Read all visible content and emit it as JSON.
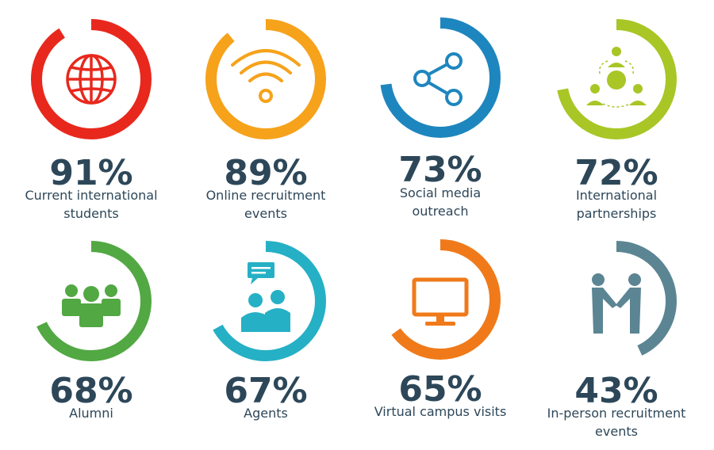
{
  "chart_data": {
    "type": "donut",
    "items": [
      {
        "value": 91,
        "label": "91%",
        "caption_line1": "Current international",
        "caption_line2": "students",
        "color": "#e8281d",
        "icon": "globe-icon"
      },
      {
        "value": 89,
        "label": "89%",
        "caption_line1": "Online recruitment",
        "caption_line2": "events",
        "color": "#f6a21b",
        "icon": "wifi-icon"
      },
      {
        "value": 73,
        "label": "73%",
        "caption_line1": "Social media",
        "caption_line2": "outreach",
        "color": "#1e86be",
        "icon": "share-icon"
      },
      {
        "value": 72,
        "label": "72%",
        "caption_line1": "International",
        "caption_line2": "partnerships",
        "color": "#a8c626",
        "icon": "partnership-network-icon"
      },
      {
        "value": 68,
        "label": "68%",
        "caption_line1": "Alumni",
        "caption_line2": "",
        "color": "#52a843",
        "icon": "people-group-icon"
      },
      {
        "value": 67,
        "label": "67%",
        "caption_line1": "Agents",
        "caption_line2": "",
        "color": "#25b0c5",
        "icon": "agents-chat-icon"
      },
      {
        "value": 65,
        "label": "65%",
        "caption_line1": "Virtual campus visits",
        "caption_line2": "",
        "color": "#f07a1a",
        "icon": "monitor-icon"
      },
      {
        "value": 43,
        "label": "43%",
        "caption_line1": "In-person recruitment",
        "caption_line2": "events",
        "color": "#5c8594",
        "icon": "handshake-icon"
      }
    ],
    "track_color": "#ffffff",
    "text_color": "#2d4759"
  }
}
